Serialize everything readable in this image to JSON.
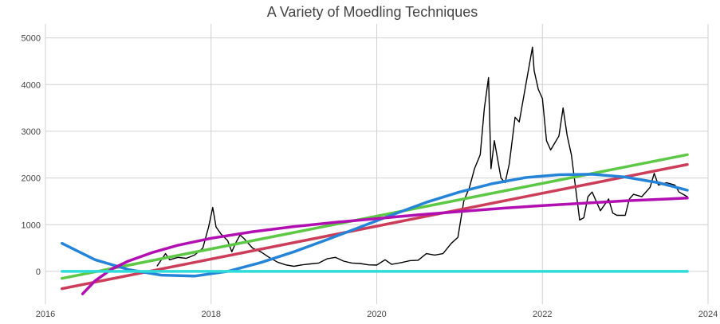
{
  "chart_data": {
    "type": "line",
    "title": "A Variety of Moedling Techniques",
    "xlabel": "",
    "ylabel": "",
    "x_ticks": [
      "2016",
      "2018",
      "2020",
      "2022",
      "2024"
    ],
    "y_ticks": [
      "0",
      "1000",
      "2000",
      "3000",
      "4000",
      "5000"
    ],
    "xlim": [
      2016,
      2024
    ],
    "ylim": [
      -700,
      5300
    ],
    "grid": true,
    "legend": "none",
    "colors": {
      "price": "#000000",
      "linear_red": "#cc3d5a",
      "linear_green": "#5cc846",
      "quadratic_blue": "#2584d8",
      "log_purple": "#b10fb1",
      "flat_cyan": "#2ddbd8"
    },
    "series": [
      {
        "key": "price",
        "points": [
          [
            2017.35,
            120
          ],
          [
            2017.45,
            380
          ],
          [
            2017.5,
            250
          ],
          [
            2017.6,
            300
          ],
          [
            2017.7,
            280
          ],
          [
            2017.8,
            350
          ],
          [
            2017.9,
            500
          ],
          [
            2017.97,
            950
          ],
          [
            2018.02,
            1370
          ],
          [
            2018.06,
            950
          ],
          [
            2018.12,
            800
          ],
          [
            2018.2,
            660
          ],
          [
            2018.25,
            420
          ],
          [
            2018.3,
            620
          ],
          [
            2018.35,
            780
          ],
          [
            2018.4,
            700
          ],
          [
            2018.5,
            500
          ],
          [
            2018.6,
            420
          ],
          [
            2018.7,
            300
          ],
          [
            2018.8,
            200
          ],
          [
            2018.9,
            140
          ],
          [
            2019.0,
            110
          ],
          [
            2019.1,
            140
          ],
          [
            2019.2,
            160
          ],
          [
            2019.3,
            180
          ],
          [
            2019.4,
            270
          ],
          [
            2019.5,
            300
          ],
          [
            2019.6,
            220
          ],
          [
            2019.7,
            180
          ],
          [
            2019.8,
            170
          ],
          [
            2019.9,
            140
          ],
          [
            2020.0,
            135
          ],
          [
            2020.1,
            250
          ],
          [
            2020.18,
            150
          ],
          [
            2020.3,
            190
          ],
          [
            2020.4,
            230
          ],
          [
            2020.5,
            240
          ],
          [
            2020.6,
            380
          ],
          [
            2020.7,
            350
          ],
          [
            2020.8,
            380
          ],
          [
            2020.9,
            600
          ],
          [
            2020.98,
            730
          ],
          [
            2021.05,
            1500
          ],
          [
            2021.12,
            1800
          ],
          [
            2021.18,
            2200
          ],
          [
            2021.25,
            2500
          ],
          [
            2021.3,
            3500
          ],
          [
            2021.35,
            4150
          ],
          [
            2021.38,
            2200
          ],
          [
            2021.42,
            2800
          ],
          [
            2021.5,
            2000
          ],
          [
            2021.55,
            1900
          ],
          [
            2021.6,
            2300
          ],
          [
            2021.67,
            3300
          ],
          [
            2021.72,
            3200
          ],
          [
            2021.8,
            4000
          ],
          [
            2021.85,
            4500
          ],
          [
            2021.88,
            4800
          ],
          [
            2021.9,
            4300
          ],
          [
            2021.95,
            3900
          ],
          [
            2022.0,
            3700
          ],
          [
            2022.05,
            2800
          ],
          [
            2022.1,
            2600
          ],
          [
            2022.2,
            2900
          ],
          [
            2022.25,
            3500
          ],
          [
            2022.3,
            2900
          ],
          [
            2022.35,
            2500
          ],
          [
            2022.4,
            1800
          ],
          [
            2022.45,
            1100
          ],
          [
            2022.5,
            1150
          ],
          [
            2022.55,
            1600
          ],
          [
            2022.6,
            1700
          ],
          [
            2022.7,
            1300
          ],
          [
            2022.8,
            1550
          ],
          [
            2022.85,
            1250
          ],
          [
            2022.9,
            1200
          ],
          [
            2022.95,
            1200
          ],
          [
            2023.0,
            1200
          ],
          [
            2023.05,
            1550
          ],
          [
            2023.1,
            1650
          ],
          [
            2023.2,
            1600
          ],
          [
            2023.3,
            1800
          ],
          [
            2023.35,
            2100
          ],
          [
            2023.4,
            1850
          ],
          [
            2023.5,
            1900
          ],
          [
            2023.6,
            1850
          ],
          [
            2023.65,
            1700
          ],
          [
            2023.7,
            1650
          ],
          [
            2023.75,
            1600
          ]
        ]
      },
      {
        "key": "linear_red",
        "points": [
          [
            2016.2,
            -370
          ],
          [
            2023.75,
            2290
          ]
        ]
      },
      {
        "key": "linear_green",
        "points": [
          [
            2016.2,
            -150
          ],
          [
            2023.75,
            2500
          ]
        ]
      },
      {
        "key": "quadratic_blue",
        "points": [
          [
            2016.2,
            600
          ],
          [
            2016.6,
            250
          ],
          [
            2017.0,
            40
          ],
          [
            2017.4,
            -80
          ],
          [
            2017.8,
            -100
          ],
          [
            2018.2,
            0
          ],
          [
            2018.6,
            190
          ],
          [
            2019.0,
            420
          ],
          [
            2019.4,
            680
          ],
          [
            2019.8,
            950
          ],
          [
            2020.2,
            1220
          ],
          [
            2020.6,
            1480
          ],
          [
            2021.0,
            1700
          ],
          [
            2021.4,
            1880
          ],
          [
            2021.8,
            2010
          ],
          [
            2022.2,
            2070
          ],
          [
            2022.6,
            2080
          ],
          [
            2023.0,
            2020
          ],
          [
            2023.4,
            1900
          ],
          [
            2023.75,
            1740
          ]
        ]
      },
      {
        "key": "log_purple",
        "points": [
          [
            2016.45,
            -480
          ],
          [
            2016.6,
            -200
          ],
          [
            2016.8,
            50
          ],
          [
            2017.0,
            220
          ],
          [
            2017.3,
            410
          ],
          [
            2017.6,
            560
          ],
          [
            2018.0,
            710
          ],
          [
            2018.5,
            850
          ],
          [
            2019.0,
            960
          ],
          [
            2019.5,
            1050
          ],
          [
            2020.0,
            1130
          ],
          [
            2020.5,
            1210
          ],
          [
            2021.0,
            1280
          ],
          [
            2021.5,
            1350
          ],
          [
            2022.0,
            1410
          ],
          [
            2022.5,
            1460
          ],
          [
            2023.0,
            1510
          ],
          [
            2023.5,
            1550
          ],
          [
            2023.75,
            1570
          ]
        ]
      },
      {
        "key": "flat_cyan",
        "points": [
          [
            2016.2,
            0
          ],
          [
            2023.75,
            0
          ]
        ]
      }
    ]
  }
}
